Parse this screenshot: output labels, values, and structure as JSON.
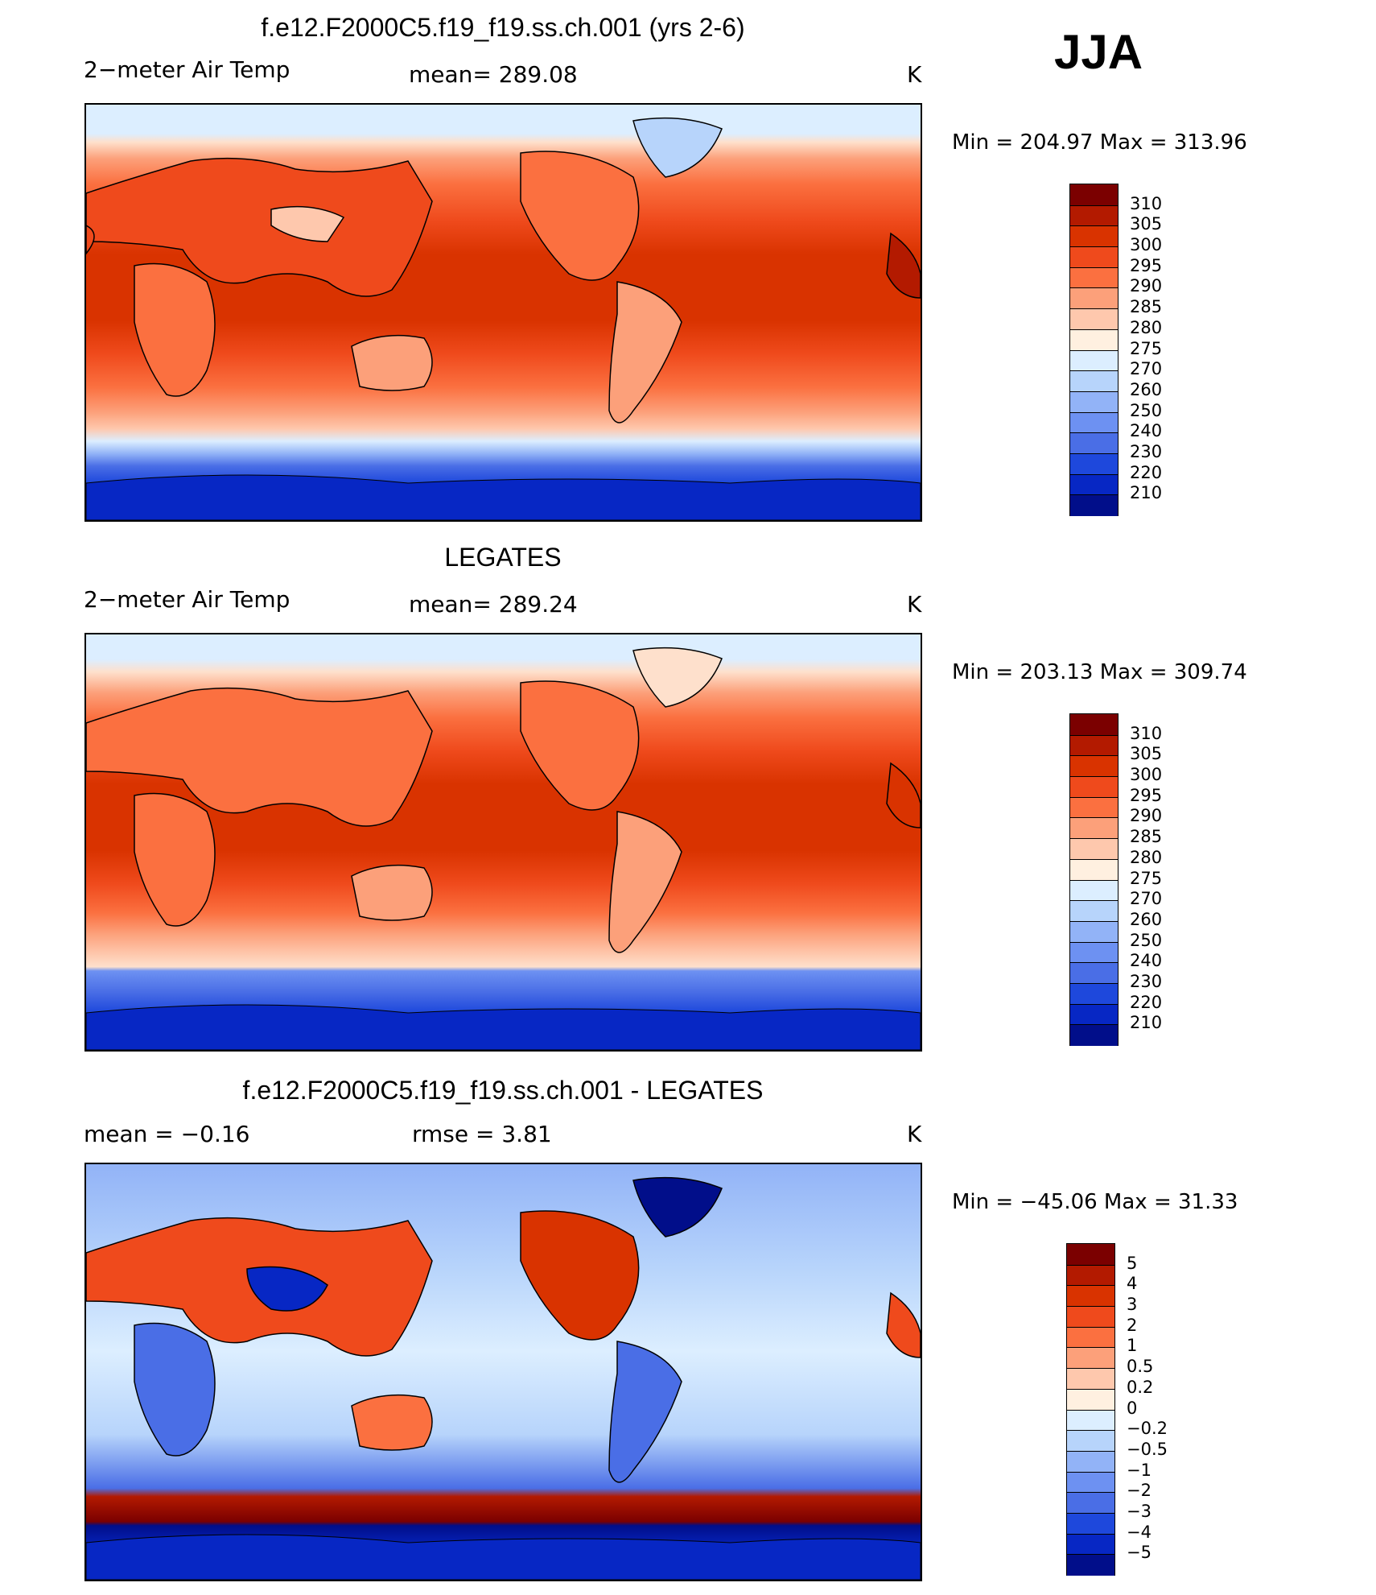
{
  "season": "JJA",
  "panels": [
    {
      "title": "f.e12.F2000C5.f19_f19.ss.ch.001 (yrs 2-6)",
      "left_text": "2−meter Air Temp",
      "center_text": "mean=  289.08",
      "units": "K",
      "minmax": "Min  =  204.97  Max  =  313.96",
      "colorbar_labels": [
        "310",
        "305",
        "300",
        "295",
        "290",
        "285",
        "280",
        "275",
        "270",
        "260",
        "250",
        "240",
        "230",
        "220",
        "210"
      ]
    },
    {
      "title": "LEGATES",
      "left_text": "2−meter Air Temp",
      "center_text": "mean=  289.24",
      "units": "K",
      "minmax": "Min  =  203.13  Max  =  309.74",
      "colorbar_labels": [
        "310",
        "305",
        "300",
        "295",
        "290",
        "285",
        "280",
        "275",
        "270",
        "260",
        "250",
        "240",
        "230",
        "220",
        "210"
      ]
    },
    {
      "title": "f.e12.F2000C5.f19_f19.ss.ch.001 - LEGATES",
      "left_text": "mean  =     −0.16",
      "center_text": "rmse  =     3.81",
      "units": "K",
      "minmax": "Min  =  −45.06  Max  =    31.33",
      "colorbar_labels": [
        "5",
        "4",
        "3",
        "2",
        "1",
        "0.5",
        "0.2",
        "0",
        "−0.2",
        "−0.5",
        "−1",
        "−2",
        "−3",
        "−4",
        "−5"
      ]
    }
  ],
  "palette": [
    "#7b0000",
    "#b31a00",
    "#d93300",
    "#ef4a1c",
    "#fb7040",
    "#fca07a",
    "#fec8ad",
    "#fff0e0",
    "#dceeff",
    "#b7d4fb",
    "#92b3f7",
    "#6d91f2",
    "#4a6ee6",
    "#1e48dc",
    "#0727c4",
    "#010e8a"
  ],
  "colors": {
    "ocean_tropics": "#d93300",
    "land_coastline": "#000000",
    "polar_ice": "#dceeff"
  }
}
